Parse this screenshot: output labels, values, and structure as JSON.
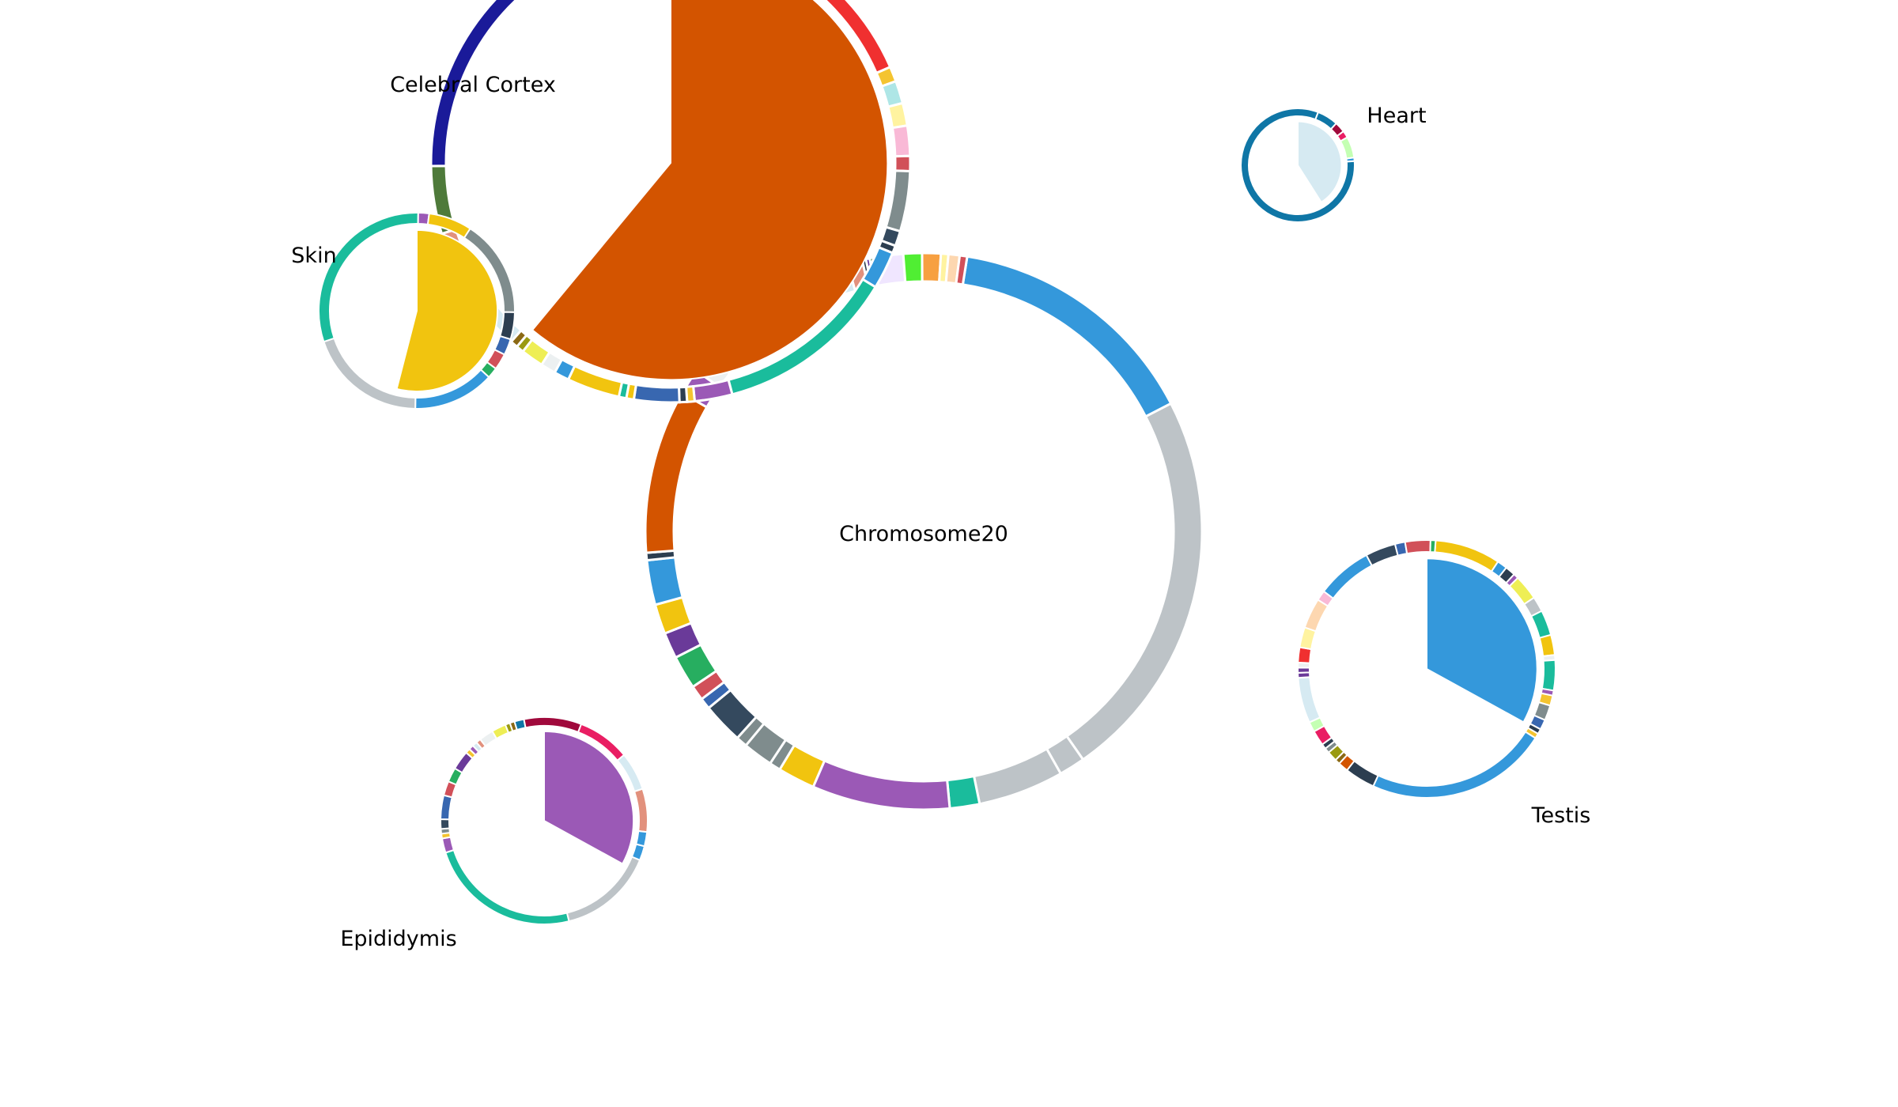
{
  "chart_data": {
    "type": "pie",
    "center": {
      "name": "Chromosome20",
      "ring": [
        {
          "c": "#3498db",
          "v": 69
        },
        {
          "c": "#bdc3c7",
          "v": 106
        },
        {
          "c": "#bdc3c7",
          "v": 7
        },
        {
          "c": "#bdc3c7",
          "v": 23
        },
        {
          "c": "#1abc9c",
          "v": 8
        },
        {
          "c": "#9b59b6",
          "v": 37
        },
        {
          "c": "#f1c40f",
          "v": 10
        },
        {
          "c": "#7f8c8d",
          "v": 3
        },
        {
          "c": "#7f8c8d",
          "v": 8
        },
        {
          "c": "#7f8c8d",
          "v": 3
        },
        {
          "c": "#34495e",
          "v": 11
        },
        {
          "c": "#3867b0",
          "v": 3
        },
        {
          "c": "#d15059",
          "v": 4
        },
        {
          "c": "#27ae60",
          "v": 9
        },
        {
          "c": "#6a3a99",
          "v": 7
        },
        {
          "c": "#f1c40f",
          "v": 8
        },
        {
          "c": "#3498db",
          "v": 12
        },
        {
          "c": "#2c3e50",
          "v": 2
        },
        {
          "c": "#d35400",
          "v": 44
        },
        {
          "c": "#9b59b6",
          "v": 7
        },
        {
          "c": "#ecf0f1",
          "v": 5
        },
        {
          "c": "#eeee55",
          "v": 5
        },
        {
          "c": "#9a9a11",
          "v": 7
        },
        {
          "c": "#8b6914",
          "v": 7
        },
        {
          "c": "#0f76a6",
          "v": 5
        },
        {
          "c": "#a0093c",
          "v": 7
        },
        {
          "c": "#e91e63",
          "v": 4
        },
        {
          "c": "#c4ffb3",
          "v": 6
        },
        {
          "c": "#d6eaf2",
          "v": 4
        },
        {
          "c": "#e2917d",
          "v": 4
        },
        {
          "c": "#2c3e50",
          "v": 1
        },
        {
          "c": "#5e2d9a",
          "v": 1
        },
        {
          "c": "#4e7a3a",
          "v": 1
        },
        {
          "c": "#f0e6ff",
          "v": 8
        },
        {
          "c": "#50ee33",
          "v": 5
        },
        {
          "c": "#f7a041",
          "v": 5
        },
        {
          "c": "#fff3a0",
          "v": 2
        },
        {
          "c": "#fdd7b0",
          "v": 3
        },
        {
          "c": "#d15059",
          "v": 2
        }
      ]
    },
    "tissues": [
      {
        "name": "Celebral Cortex",
        "wedge": {
          "c": "#d35400",
          "v": 0.61
        },
        "ring": [
          {
            "c": "#f03030",
            "v": 44
          },
          {
            "c": "#f4c430",
            "v": 2
          },
          {
            "c": "#aee6e6",
            "v": 3
          },
          {
            "c": "#fff3a0",
            "v": 3
          },
          {
            "c": "#f9b9d6",
            "v": 4
          },
          {
            "c": "#d15059",
            "v": 2
          },
          {
            "c": "#7f8c8d",
            "v": 8
          },
          {
            "c": "#34495e",
            "v": 2
          },
          {
            "c": "#2c3e50",
            "v": 1
          },
          {
            "c": "#3498db",
            "v": 5
          },
          {
            "c": "#1abc9c",
            "v": 24
          },
          {
            "c": "#9b59b6",
            "v": 5
          },
          {
            "c": "#f4c430",
            "v": 1
          },
          {
            "c": "#2c3e50",
            "v": 1
          },
          {
            "c": "#3867b0",
            "v": 6
          },
          {
            "c": "#f1c40f",
            "v": 1
          },
          {
            "c": "#1abc9c",
            "v": 1
          },
          {
            "c": "#f1c40f",
            "v": 7
          },
          {
            "c": "#3498db",
            "v": 2
          },
          {
            "c": "#ecf0f1",
            "v": 2
          },
          {
            "c": "#eeee55",
            "v": 3
          },
          {
            "c": "#9a9a11",
            "v": 1
          },
          {
            "c": "#8b6914",
            "v": 1
          },
          {
            "c": "#d6eaf2",
            "v": 10
          },
          {
            "c": "#e2917d",
            "v": 7
          },
          {
            "c": "#4e7a3a",
            "v": 9
          },
          {
            "c": "#1a1a99",
            "v": 38
          },
          {
            "c": "#f0e6ff",
            "v": 4
          }
        ]
      },
      {
        "name": "Skin",
        "wedge": {
          "c": "#f1c40f",
          "v": 0.54
        },
        "ring": [
          {
            "c": "#7f8c8d",
            "v": 18
          },
          {
            "c": "#2c3e50",
            "v": 5
          },
          {
            "c": "#3867b0",
            "v": 3
          },
          {
            "c": "#d15059",
            "v": 3
          },
          {
            "c": "#27ae60",
            "v": 2
          },
          {
            "c": "#3498db",
            "v": 15
          },
          {
            "c": "#bdc3c7",
            "v": 22
          },
          {
            "c": "#1abc9c",
            "v": 34
          },
          {
            "c": "#9b59b6",
            "v": 2
          },
          {
            "c": "#f1c40f",
            "v": 8
          }
        ]
      },
      {
        "name": "Heart",
        "wedge": {
          "c": "#d6eaf2",
          "v": 0.41
        },
        "ring": [
          {
            "c": "#0f76a6",
            "v": 6
          },
          {
            "c": "#a0093c",
            "v": 3
          },
          {
            "c": "#e91e63",
            "v": 2
          },
          {
            "c": "#c4ffb3",
            "v": 6
          },
          {
            "c": "#3498db",
            "v": 1
          },
          {
            "c": "#0f76a6",
            "v": 82
          }
        ]
      },
      {
        "name": "Epididymis",
        "wedge": {
          "c": "#9b59b6",
          "v": 0.33
        },
        "ring": [
          {
            "c": "#e91e63",
            "v": 11
          },
          {
            "c": "#d6eaf2",
            "v": 8
          },
          {
            "c": "#e2917d",
            "v": 9
          },
          {
            "c": "#3498db",
            "v": 3
          },
          {
            "c": "#3498db",
            "v": 3
          },
          {
            "c": "#bdc3c7",
            "v": 20
          },
          {
            "c": "#1abc9c",
            "v": 32
          },
          {
            "c": "#9b59b6",
            "v": 3
          },
          {
            "c": "#f4c430",
            "v": 1
          },
          {
            "c": "#7f8c8d",
            "v": 1
          },
          {
            "c": "#34495e",
            "v": 2
          },
          {
            "c": "#3867b0",
            "v": 5
          },
          {
            "c": "#d15059",
            "v": 3
          },
          {
            "c": "#27ae60",
            "v": 3
          },
          {
            "c": "#6a3a99",
            "v": 4
          },
          {
            "c": "#f4c430",
            "v": 1
          },
          {
            "c": "#9b59b6",
            "v": 1
          },
          {
            "c": "#d6eaf2",
            "v": 1
          },
          {
            "c": "#e2917d",
            "v": 1
          },
          {
            "c": "#ecf0f1",
            "v": 3
          },
          {
            "c": "#eeee55",
            "v": 3
          },
          {
            "c": "#9a9a11",
            "v": 1
          },
          {
            "c": "#8b6914",
            "v": 1
          },
          {
            "c": "#0f76a6",
            "v": 2
          },
          {
            "c": "#a0093c",
            "v": 12
          }
        ]
      },
      {
        "name": "Testis",
        "wedge": {
          "c": "#3498db",
          "v": 0.33
        },
        "ring": [
          {
            "c": "#f1c40f",
            "v": 13
          },
          {
            "c": "#3498db",
            "v": 2
          },
          {
            "c": "#2c3e50",
            "v": 2
          },
          {
            "c": "#9b59b6",
            "v": 1
          },
          {
            "c": "#eeee55",
            "v": 5
          },
          {
            "c": "#bdc3c7",
            "v": 3
          },
          {
            "c": "#1abc9c",
            "v": 5
          },
          {
            "c": "#f1c40f",
            "v": 4
          },
          {
            "c": "#ecf0f1",
            "v": 1
          },
          {
            "c": "#1abc9c",
            "v": 6
          },
          {
            "c": "#9b59b6",
            "v": 1
          },
          {
            "c": "#f4c430",
            "v": 2
          },
          {
            "c": "#7f8c8d",
            "v": 3
          },
          {
            "c": "#3867b0",
            "v": 2
          },
          {
            "c": "#2c3e50",
            "v": 1
          },
          {
            "c": "#f4c430",
            "v": 1
          },
          {
            "c": "#3498db",
            "v": 36
          },
          {
            "c": "#2c3e50",
            "v": 6
          },
          {
            "c": "#d35400",
            "v": 2
          },
          {
            "c": "#8b6914",
            "v": 1
          },
          {
            "c": "#9a9a11",
            "v": 2
          },
          {
            "c": "#7f8c8d",
            "v": 1
          },
          {
            "c": "#2c3e50",
            "v": 1
          },
          {
            "c": "#e91e63",
            "v": 3
          },
          {
            "c": "#c4ffb3",
            "v": 2
          },
          {
            "c": "#d6eaf2",
            "v": 9
          },
          {
            "c": "#6a3a99",
            "v": 1
          },
          {
            "c": "#6a3a99",
            "v": 1
          },
          {
            "c": "#ecf0f1",
            "v": 1
          },
          {
            "c": "#f03030",
            "v": 3
          },
          {
            "c": "#fff3a0",
            "v": 4
          },
          {
            "c": "#fdd7b0",
            "v": 6
          },
          {
            "c": "#f9b9d6",
            "v": 2
          },
          {
            "c": "#3498db",
            "v": 11
          },
          {
            "c": "#34495e",
            "v": 6
          },
          {
            "c": "#3867b0",
            "v": 2
          },
          {
            "c": "#d15059",
            "v": 5
          },
          {
            "c": "#27ae60",
            "v": 1
          }
        ]
      }
    ]
  }
}
